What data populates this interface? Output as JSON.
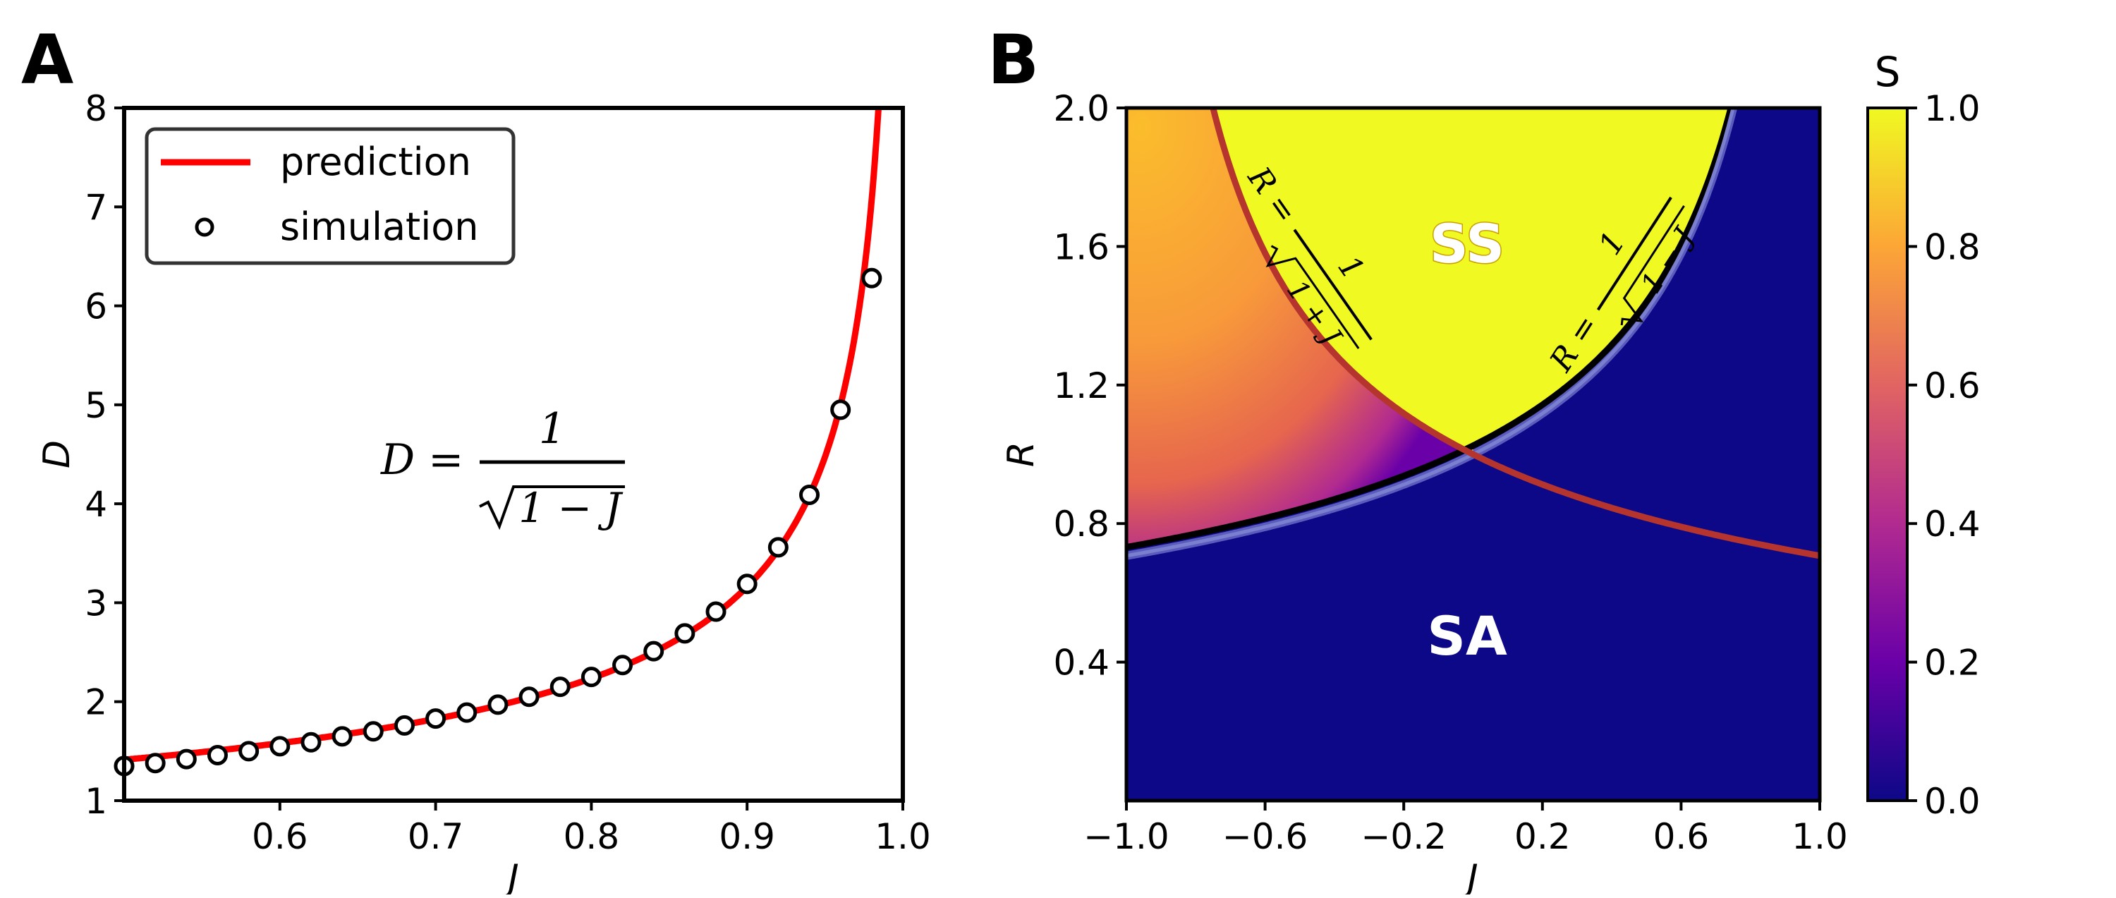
{
  "chart_data": [
    {
      "panel": "A",
      "type": "line",
      "title": "",
      "xlabel": "J",
      "ylabel": "D",
      "xlim": [
        0.5,
        1.0
      ],
      "ylim": [
        1,
        8
      ],
      "xticks": [
        "0.6",
        "0.7",
        "0.8",
        "0.9",
        "1.0"
      ],
      "yticks": [
        "1",
        "2",
        "3",
        "4",
        "5",
        "6",
        "7",
        "8"
      ],
      "legend": {
        "position": "top-left",
        "entries": [
          "prediction",
          "simulation"
        ]
      },
      "annotation": {
        "lhs": "D =",
        "numerator": "1",
        "denominator": "1 − J"
      },
      "series": [
        {
          "name": "prediction",
          "style": "line",
          "color": "#ff0000",
          "formula": "D = 1/sqrt(1-J)"
        },
        {
          "name": "simulation",
          "style": "marker",
          "x": [
            0.5,
            0.52,
            0.54,
            0.56,
            0.58,
            0.6,
            0.62,
            0.64,
            0.66,
            0.68,
            0.7,
            0.72,
            0.74,
            0.76,
            0.78,
            0.8,
            0.82,
            0.84,
            0.86,
            0.88,
            0.9,
            0.92,
            0.94,
            0.96,
            0.98
          ],
          "y": [
            1.35,
            1.38,
            1.42,
            1.46,
            1.5,
            1.55,
            1.59,
            1.65,
            1.7,
            1.76,
            1.83,
            1.89,
            1.97,
            2.05,
            2.15,
            2.25,
            2.37,
            2.51,
            2.69,
            2.91,
            3.19,
            3.56,
            4.09,
            4.95,
            6.28
          ]
        }
      ]
    },
    {
      "panel": "B",
      "type": "heatmap",
      "title": "",
      "xlabel": "J",
      "ylabel": "R",
      "xlim": [
        -1.0,
        1.0
      ],
      "ylim": [
        0.0,
        2.0
      ],
      "xticks": [
        "−1.0",
        "−0.6",
        "−0.2",
        "0.2",
        "0.6",
        "1.0"
      ],
      "yticks": [
        "0.4",
        "0.8",
        "1.2",
        "1.6",
        "2.0"
      ],
      "colorbar": {
        "label": "S",
        "range": [
          0.0,
          1.0
        ],
        "ticks": [
          "0.0",
          "0.2",
          "0.4",
          "0.6",
          "0.8",
          "1.0"
        ],
        "colormap": "plasma"
      },
      "regions": [
        "SS",
        "SA"
      ],
      "curves": [
        {
          "label_lhs": "R =",
          "label_num": "1",
          "label_den": "1 + J",
          "formula": "R = 1/sqrt(1+J)",
          "color": "#b5352e"
        },
        {
          "label_lhs": "R =",
          "label_num": "1",
          "label_den": "1 − J",
          "formula": "R = 1/sqrt(1-J)",
          "color": "#7a7fd0"
        }
      ]
    }
  ]
}
